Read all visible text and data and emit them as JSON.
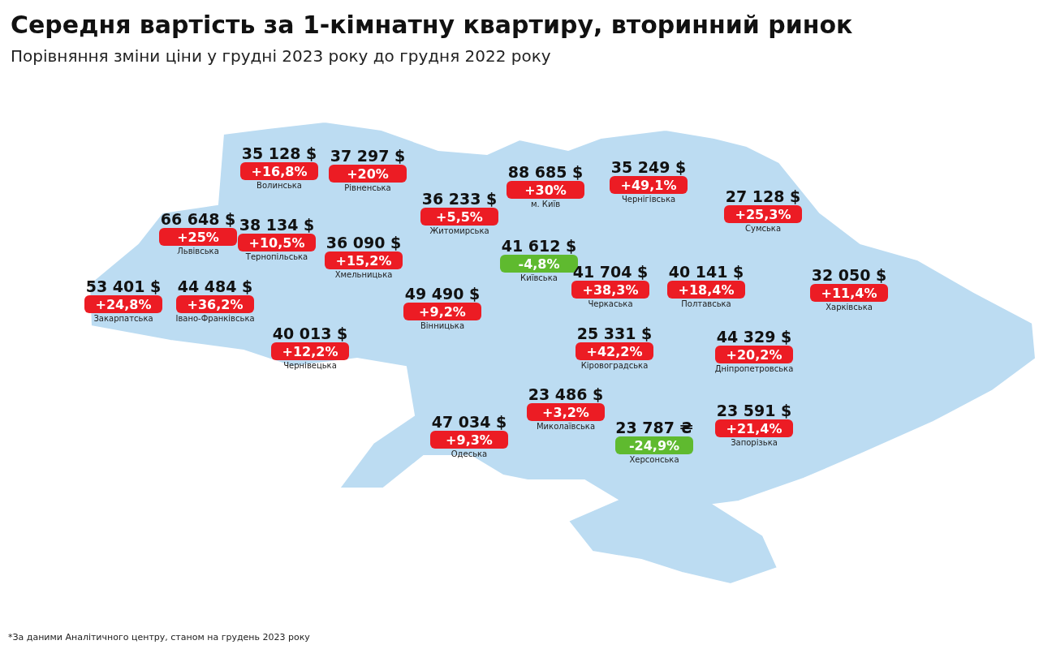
{
  "chart_data": {
    "type": "other",
    "title": "Середня вартість за 1-кімнатну квартиру, вторинний ринок",
    "subtitle": "Порівняння зміни ціни у грудні 2023 року до грудня 2022 року",
    "categories": [
      "Волинська",
      "Рівненська",
      "Житомирська",
      "м. Київ",
      "Чернігівська",
      "Сумська",
      "Львівська",
      "Тернопільська",
      "Хмельницька",
      "Київська",
      "Черкаська",
      "Полтавська",
      "Харківська",
      "Закарпатська",
      "Івано-Франківська",
      "Вінницька",
      "Чернівецька",
      "Кіровоградська",
      "Дніпропетровська",
      "Миколаївська",
      "Одеська",
      "Херсонська",
      "Запорізька"
    ],
    "series": [
      {
        "color": "#111111",
        "values": [
          35128,
          37297,
          36233,
          88685,
          35249,
          27128,
          66648,
          38134,
          36090,
          41612,
          41704,
          40141,
          32050,
          53401,
          44484,
          49490,
          40013,
          25331,
          44329,
          23486,
          47034,
          23787,
          23591
        ],
        "value_labels": [
          "35 128 $",
          "37 297 $",
          "36 233 $",
          "88 685 $",
          "35 249 $",
          "27 128 $",
          "66 648 $",
          "38 134 $",
          "36 090 $",
          "41 612 $",
          "41 704 $",
          "40 141 $",
          "32 050 $",
          "53 401 $",
          "44 484 $",
          "49 490 $",
          "40 013 $",
          "25 331 $",
          "44 329 $",
          "23 486 $",
          "47 034 $",
          "23 787 ₴",
          "23 591 $"
        ]
      },
      {
        "values": [
          16.8,
          20,
          5.5,
          30,
          49.1,
          25.3,
          25,
          10.5,
          15.2,
          -4.8,
          38.3,
          18.4,
          11.4,
          24.8,
          36.2,
          9.2,
          12.2,
          42.2,
          20.2,
          3.2,
          9.3,
          -24.9,
          21.4
        ],
        "value_labels": [
          "+16,8%",
          "+20%",
          "+5,5%",
          "+30%",
          "+49,1%",
          "+25,3%",
          "+25%",
          "+10,5%",
          "+15,2%",
          "-4,8%",
          "+38,3%",
          "+18,4%",
          "+11,4%",
          "+24,8%",
          "+36,2%",
          "+9,2%",
          "+12,2%",
          "+42,2%",
          "+20,2%",
          "+3,2%",
          "+9,3%",
          "-24,9%",
          "+21,4%"
        ],
        "colors": [
          "#ec1c24",
          "#ec1c24",
          "#ec1c24",
          "#ec1c24",
          "#ec1c24",
          "#ec1c24",
          "#ec1c24",
          "#ec1c24",
          "#ec1c24",
          "#5fba2f",
          "#ec1c24",
          "#ec1c24",
          "#ec1c24",
          "#ec1c24",
          "#ec1c24",
          "#ec1c24",
          "#ec1c24",
          "#ec1c24",
          "#ec1c24",
          "#ec1c24",
          "#ec1c24",
          "#5fba2f",
          "#ec1c24"
        ]
      }
    ],
    "annotations": [
      "*За даними Аналітичного центру, станом на грудень 2023 року"
    ]
  }
}
